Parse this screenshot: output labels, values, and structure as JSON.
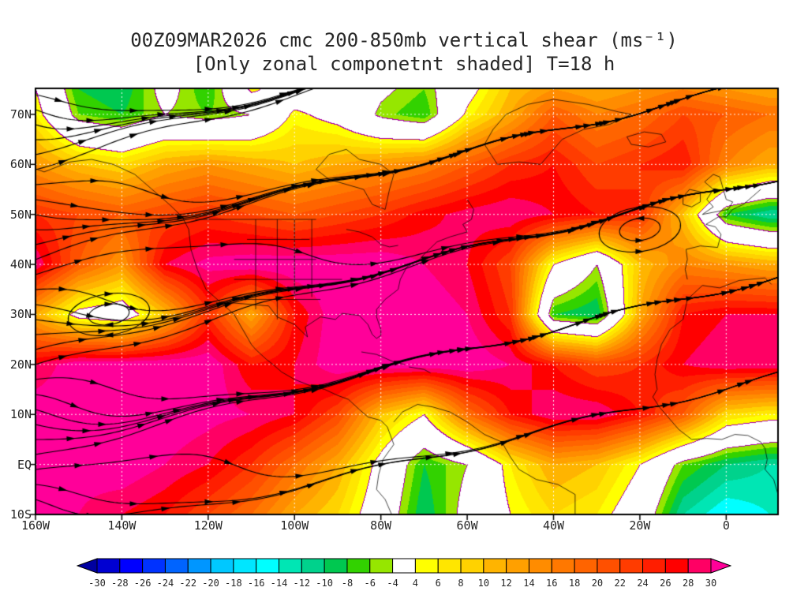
{
  "header": {
    "title_line1": "00Z09MAR2026 cmc 200-850mb vertical shear (ms⁻¹)",
    "title_line2": "[Only zonal componetnt shaded] T=18 h"
  },
  "axes": {
    "lat_ticks": [
      {
        "label": "70N",
        "lat": 70
      },
      {
        "label": "60N",
        "lat": 60
      },
      {
        "label": "50N",
        "lat": 50
      },
      {
        "label": "40N",
        "lat": 40
      },
      {
        "label": "30N",
        "lat": 30
      },
      {
        "label": "20N",
        "lat": 20
      },
      {
        "label": "10N",
        "lat": 10
      },
      {
        "label": "EQ",
        "lat": 0
      },
      {
        "label": "10S",
        "lat": -10
      }
    ],
    "lon_ticks": [
      {
        "label": "160W",
        "lon": -160
      },
      {
        "label": "140W",
        "lon": -140
      },
      {
        "label": "120W",
        "lon": -120
      },
      {
        "label": "100W",
        "lon": -100
      },
      {
        "label": "80W",
        "lon": -80
      },
      {
        "label": "60W",
        "lon": -60
      },
      {
        "label": "40W",
        "lon": -40
      },
      {
        "label": "20W",
        "lon": -20
      },
      {
        "label": "0",
        "lon": 0
      }
    ]
  },
  "colorbar": {
    "labels": [
      "-30",
      "-28",
      "-26",
      "-24",
      "-22",
      "-20",
      "-18",
      "-16",
      "-14",
      "-12",
      "-10",
      "-8",
      "-6",
      "-4",
      "4",
      "6",
      "8",
      "10",
      "12",
      "14",
      "16",
      "18",
      "20",
      "22",
      "24",
      "26",
      "28",
      "30"
    ],
    "segment_colors": [
      "#0000d2",
      "#0000ff",
      "#0032ff",
      "#0064ff",
      "#0096ff",
      "#00c8ff",
      "#00e6ff",
      "#00ffff",
      "#00e6b4",
      "#00d28c",
      "#00c850",
      "#32d200",
      "#96e600",
      "#ffffff",
      "#ffff00",
      "#ffe600",
      "#ffd200",
      "#ffb400",
      "#ffa000",
      "#ff8c00",
      "#ff7800",
      "#ff6400",
      "#ff5000",
      "#ff3c00",
      "#ff1e00",
      "#ff0000",
      "#ff0064"
    ],
    "left_arrow_color": "#0000a0",
    "right_arrow_color": "#ff0099"
  },
  "chart_data": {
    "type": "heatmap",
    "title": "00Z09MAR2026 cmc 200-850mb vertical shear (ms⁻¹)",
    "subtitle": "[Only zonal componetnt shaded] T=18 h",
    "units": "ms⁻¹",
    "legend_position": "bottom",
    "grid": "dotted-white",
    "overlays": [
      "streamlines",
      "coastlines",
      "purple-zero-band-contours"
    ],
    "xlim": [
      -160,
      12
    ],
    "ylim": [
      -10,
      75.2
    ],
    "levels": [
      -30,
      -28,
      -26,
      -24,
      -22,
      -20,
      -18,
      -16,
      -14,
      -12,
      -10,
      -8,
      -6,
      -4,
      4,
      6,
      8,
      10,
      12,
      14,
      16,
      18,
      20,
      22,
      24,
      26,
      28,
      30
    ],
    "lons": [
      -160,
      -150,
      -140,
      -130,
      -120,
      -110,
      -100,
      -90,
      -80,
      -70,
      -60,
      -50,
      -40,
      -30,
      -20,
      -10,
      0,
      10
    ],
    "lats": [
      75,
      70,
      60,
      50,
      40,
      30,
      20,
      10,
      0,
      -10
    ],
    "values": [
      [
        4,
        -8,
        -10,
        -2,
        -8,
        5,
        0,
        1,
        -3,
        -6,
        2,
        10,
        14,
        12,
        14,
        16,
        14,
        12
      ],
      [
        6,
        -6,
        -8,
        -4,
        -6,
        -4,
        5,
        2,
        -5,
        -8,
        5,
        12,
        20,
        16,
        18,
        22,
        20,
        18
      ],
      [
        14,
        10,
        8,
        12,
        14,
        12,
        10,
        12,
        14,
        16,
        20,
        24,
        26,
        22,
        24,
        26,
        16,
        12
      ],
      [
        24,
        22,
        20,
        22,
        24,
        22,
        20,
        22,
        24,
        27,
        29,
        30,
        28,
        26,
        24,
        10,
        -8,
        -12
      ],
      [
        30,
        20,
        14,
        28,
        31,
        32,
        32,
        32,
        32,
        30,
        28,
        22,
        4,
        -4,
        10,
        16,
        14,
        12
      ],
      [
        12,
        2,
        0,
        10,
        24,
        12,
        26,
        32,
        33,
        32,
        30,
        24,
        -8,
        -10,
        12,
        26,
        28,
        28
      ],
      [
        28,
        32,
        32,
        32,
        32,
        26,
        28,
        32,
        32,
        32,
        32,
        30,
        26,
        22,
        24,
        28,
        30,
        30
      ],
      [
        32,
        32,
        32,
        32,
        31,
        30,
        28,
        22,
        10,
        4,
        18,
        26,
        30,
        30,
        26,
        20,
        8,
        6
      ],
      [
        30,
        31,
        32,
        30,
        28,
        24,
        18,
        12,
        2,
        -8,
        -4,
        6,
        12,
        10,
        4,
        -6,
        -10,
        -12
      ],
      [
        30,
        30,
        28,
        26,
        22,
        18,
        12,
        8,
        0,
        -10,
        -2,
        4,
        8,
        6,
        0,
        -12,
        -16,
        -14
      ]
    ]
  }
}
